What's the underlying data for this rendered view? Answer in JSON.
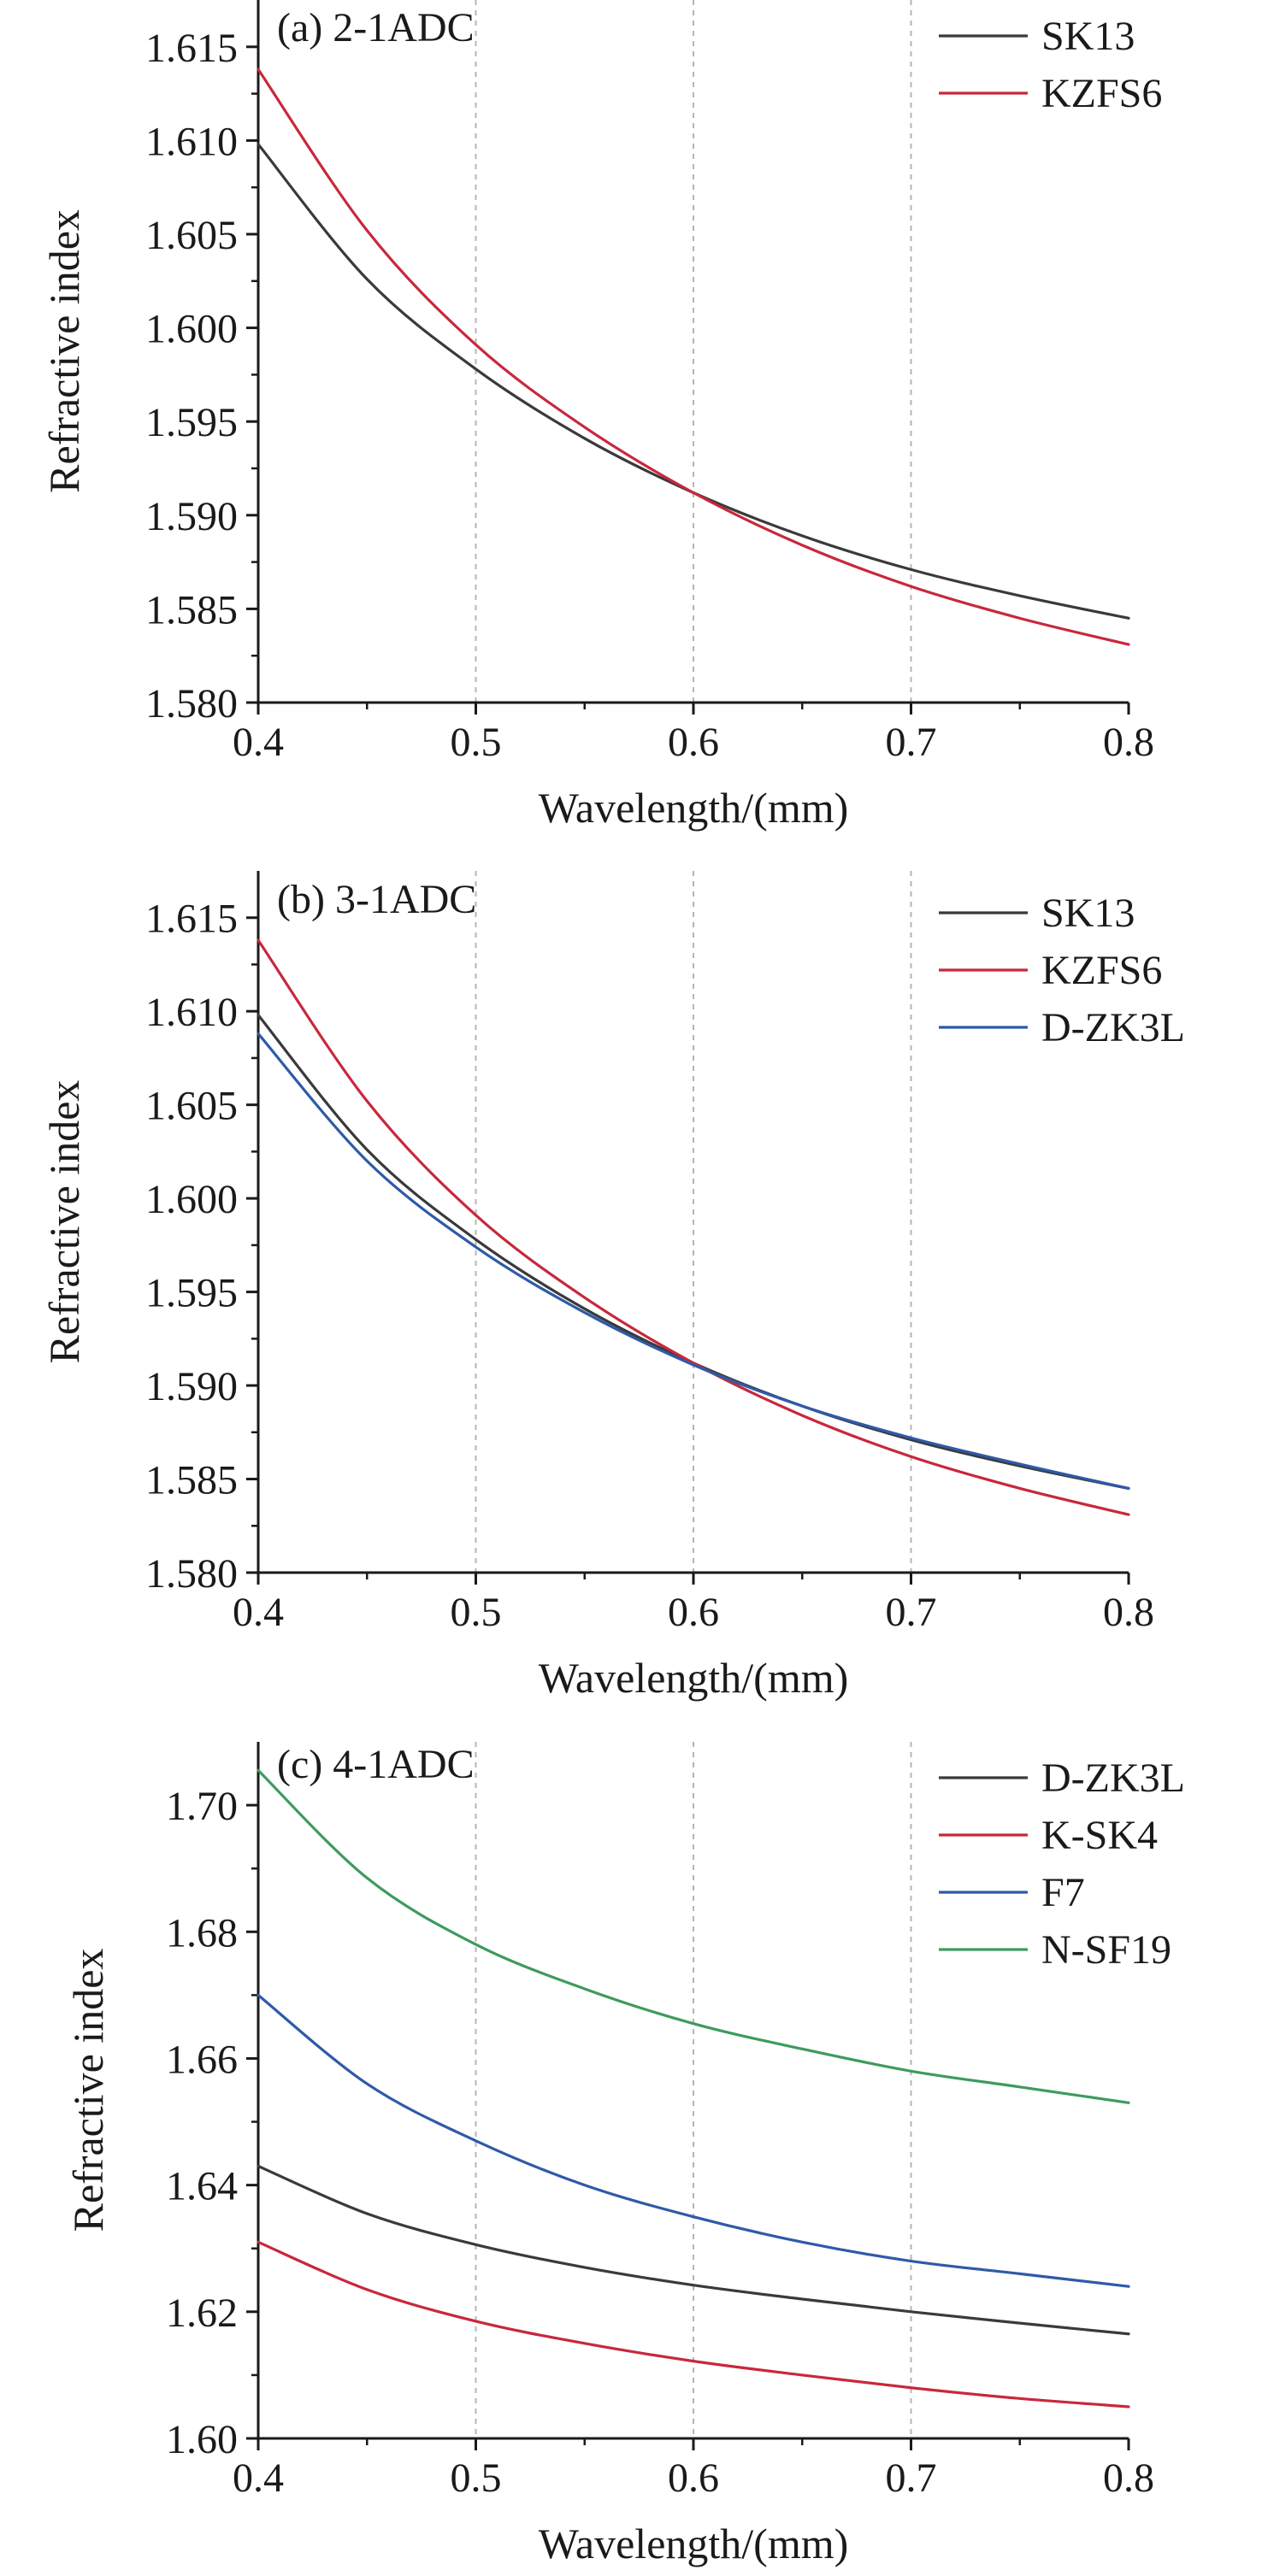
{
  "figure": {
    "xlabel_unit": "Wavelength/(mm)"
  },
  "colors": {
    "black": "#3a3a3a",
    "red": "#c8283c",
    "blue": "#2e5aa8",
    "green": "#3e9a5e"
  },
  "chart_data": [
    {
      "type": "line",
      "title": "(a) 2-1ADC",
      "xlabel": "Wavelength/(mm)",
      "ylabel": "Refractive index",
      "xlim": [
        0.4,
        0.8
      ],
      "ylim": [
        1.58,
        1.6175
      ],
      "xticks": [
        "0.4",
        "0.5",
        "0.6",
        "0.7",
        "0.8"
      ],
      "yticks": [
        "1.580",
        "1.585",
        "1.590",
        "1.595",
        "1.600",
        "1.605",
        "1.610",
        "1.615"
      ],
      "grid": "vertical dashed",
      "legend": "top-right",
      "x": [
        0.4,
        0.45,
        0.5,
        0.55,
        0.6,
        0.65,
        0.7,
        0.75,
        0.8
      ],
      "series": [
        {
          "name": "SK13",
          "color": "#3a3a3a",
          "values": [
            1.6098,
            1.6026,
            1.5978,
            1.5941,
            1.5912,
            1.5889,
            1.5871,
            1.5857,
            1.5845
          ]
        },
        {
          "name": "KZFS6",
          "color": "#c8283c",
          "values": [
            1.6138,
            1.6052,
            1.5991,
            1.5947,
            1.5912,
            1.5884,
            1.5862,
            1.5845,
            1.5831
          ]
        }
      ]
    },
    {
      "type": "line",
      "title": "(b) 3-1ADC",
      "xlabel": "Wavelength/(mm)",
      "ylabel": "Refractive index",
      "xlim": [
        0.4,
        0.8
      ],
      "ylim": [
        1.58,
        1.6175
      ],
      "xticks": [
        "0.4",
        "0.5",
        "0.6",
        "0.7",
        "0.8"
      ],
      "yticks": [
        "1.580",
        "1.585",
        "1.590",
        "1.595",
        "1.600",
        "1.605",
        "1.610",
        "1.615"
      ],
      "grid": "vertical dashed",
      "legend": "top-right",
      "x": [
        0.4,
        0.45,
        0.5,
        0.55,
        0.6,
        0.65,
        0.7,
        0.75,
        0.8
      ],
      "series": [
        {
          "name": "SK13",
          "color": "#3a3a3a",
          "values": [
            1.6098,
            1.6026,
            1.5978,
            1.5941,
            1.5912,
            1.5889,
            1.5871,
            1.5857,
            1.5845
          ]
        },
        {
          "name": "KZFS6",
          "color": "#c8283c",
          "values": [
            1.6138,
            1.6052,
            1.5991,
            1.5947,
            1.5912,
            1.5884,
            1.5862,
            1.5845,
            1.5831
          ]
        },
        {
          "name": "D-ZK3L",
          "color": "#2e5aa8",
          "values": [
            1.6088,
            1.602,
            1.5974,
            1.5939,
            1.5911,
            1.5889,
            1.5872,
            1.5858,
            1.5845
          ]
        }
      ]
    },
    {
      "type": "line",
      "title": "(c) 4-1ADC",
      "xlabel": "Wavelength/(mm)",
      "ylabel": "Refractive index",
      "xlim": [
        0.4,
        0.8
      ],
      "ylim": [
        1.6,
        1.71
      ],
      "xticks": [
        "0.4",
        "0.5",
        "0.6",
        "0.7",
        "0.8"
      ],
      "yticks": [
        "1.60",
        "1.62",
        "1.64",
        "1.66",
        "1.68",
        "1.70"
      ],
      "grid": "vertical dashed",
      "legend": "top-right",
      "x": [
        0.4,
        0.45,
        0.5,
        0.55,
        0.6,
        0.65,
        0.7,
        0.75,
        0.8
      ],
      "series": [
        {
          "name": "D-ZK3L",
          "color": "#3a3a3a",
          "values": [
            1.643,
            1.6355,
            1.6306,
            1.627,
            1.6242,
            1.622,
            1.62,
            1.6182,
            1.6165
          ]
        },
        {
          "name": "K-SK4",
          "color": "#c8283c",
          "values": [
            1.631,
            1.6235,
            1.6185,
            1.615,
            1.6122,
            1.61,
            1.608,
            1.6063,
            1.605
          ]
        },
        {
          "name": "F7",
          "color": "#2e5aa8",
          "values": [
            1.67,
            1.656,
            1.647,
            1.64,
            1.635,
            1.631,
            1.628,
            1.626,
            1.624
          ]
        },
        {
          "name": "N-SF19",
          "color": "#3e9a5e",
          "values": [
            1.7055,
            1.6885,
            1.678,
            1.671,
            1.6655,
            1.6615,
            1.658,
            1.6555,
            1.653
          ]
        }
      ]
    }
  ]
}
